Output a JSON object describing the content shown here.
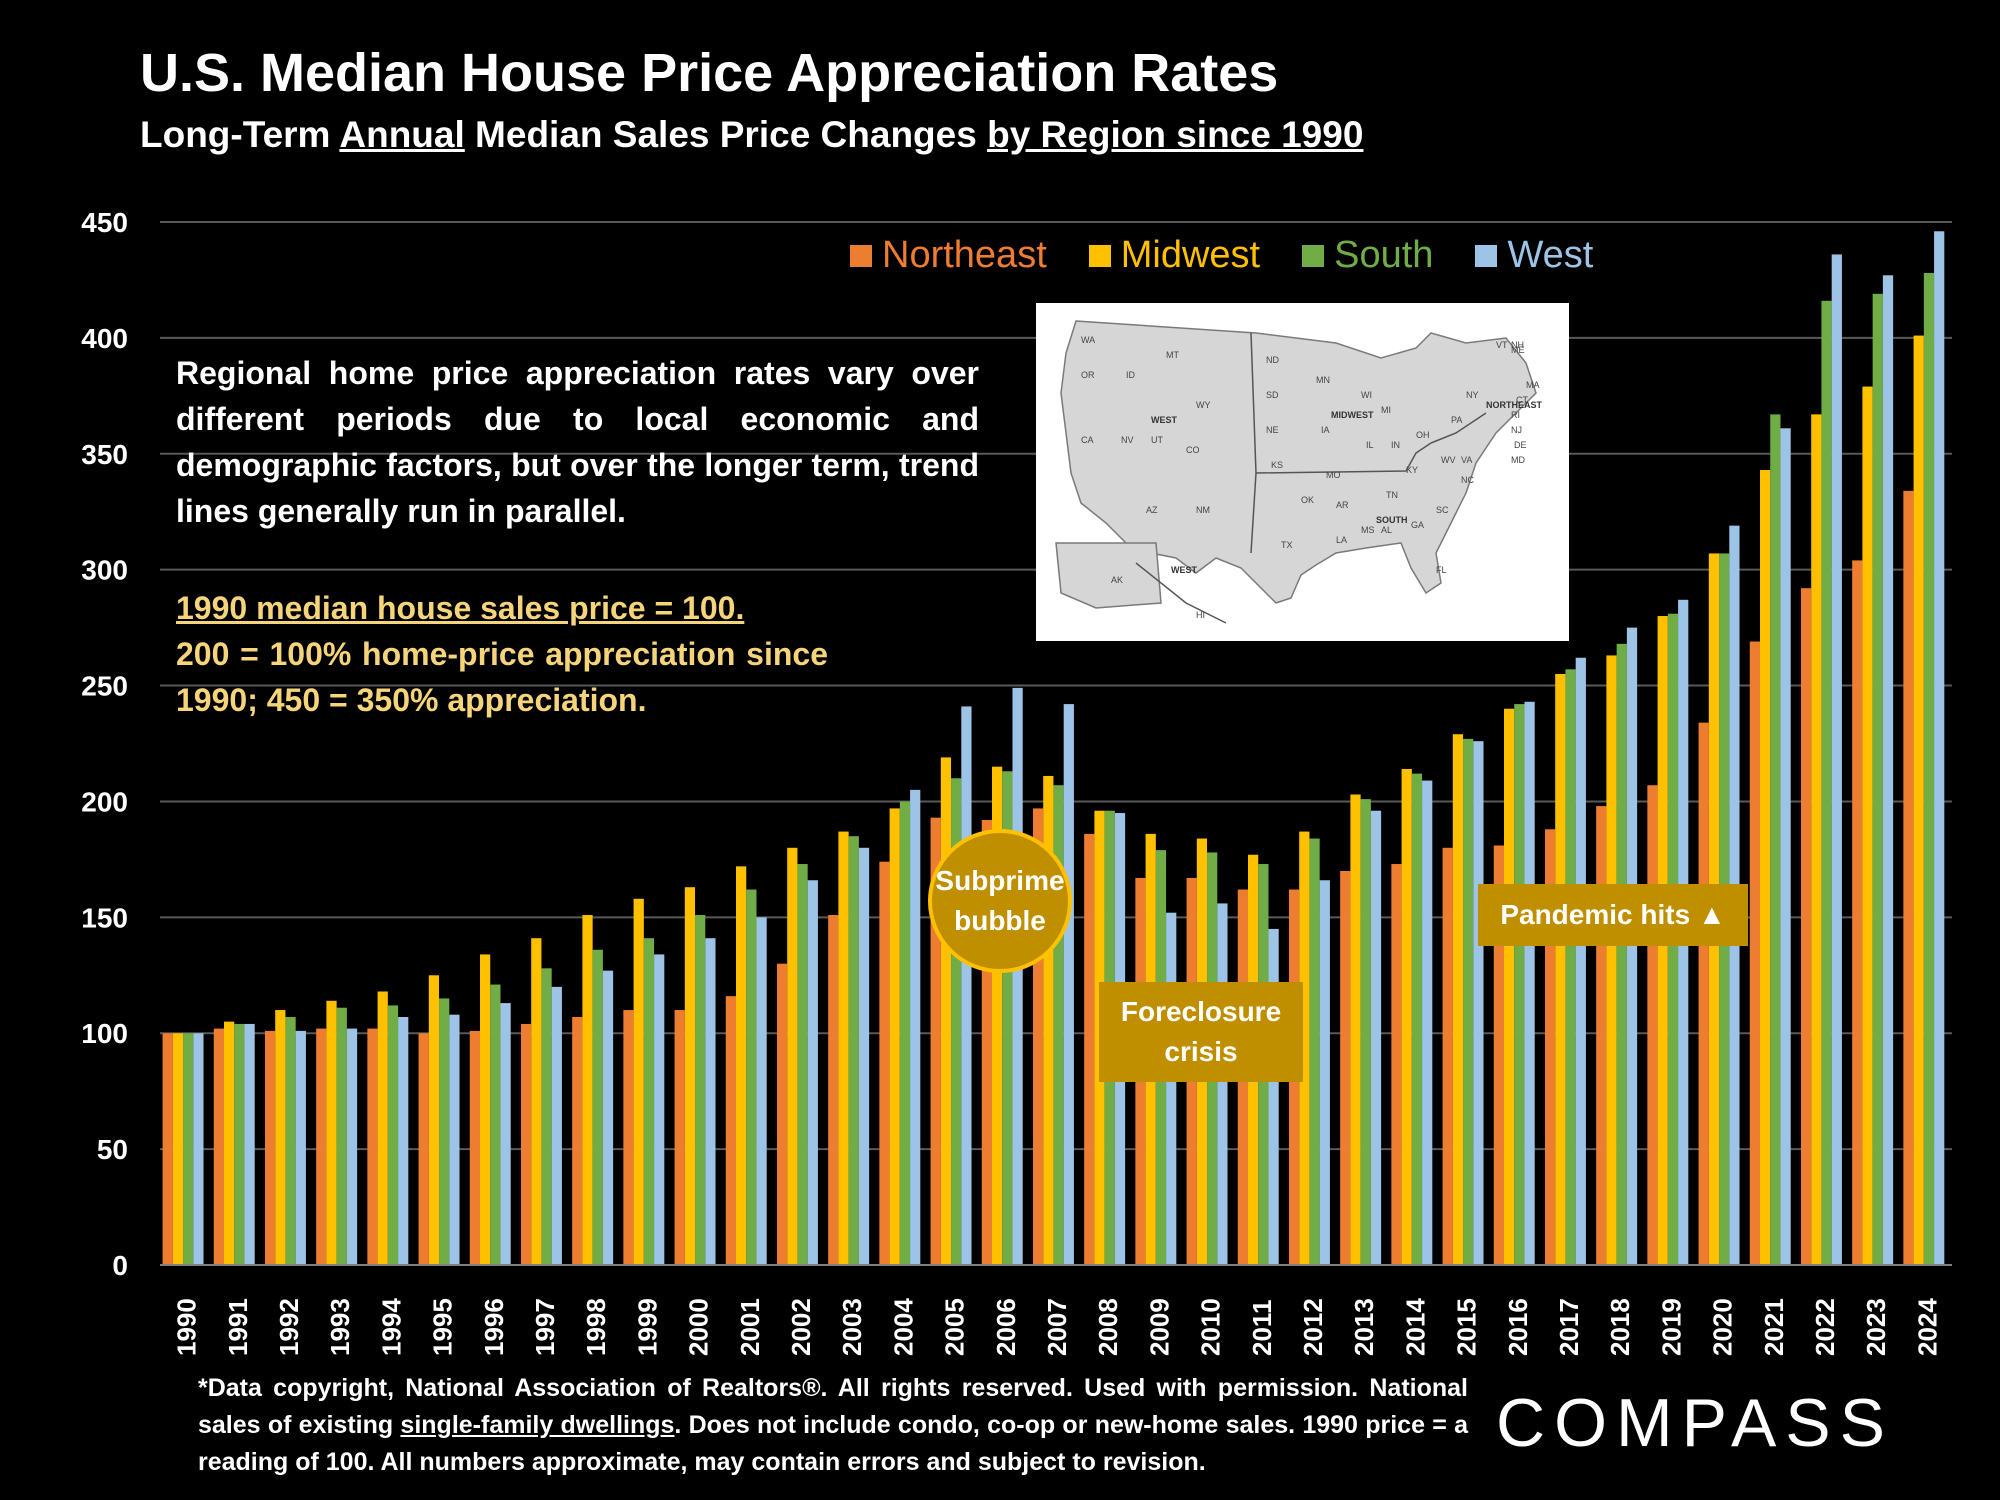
{
  "title": "U.S. Median House Price Appreciation Rates",
  "subtitle": {
    "part1": "Long-Term ",
    "part2": "Annual",
    "part3": " Median Sales Price Changes ",
    "part4": "by Region since 1990"
  },
  "description": "Regional home price appreciation rates vary over different periods due to local economic and demographic factors, but over the longer term, trend lines generally run in parallel.",
  "note": {
    "line1": "1990 median house sales price = 100.",
    "line2": "200 = 100% home-price appreciation since 1990; 450 = 350% appreciation."
  },
  "callouts": {
    "subprime": "Subprime bubble",
    "foreclosure": "Foreclosure crisis",
    "pandemic": "Pandemic hits ▲"
  },
  "map": {
    "region_labels": [
      "WEST",
      "MIDWEST",
      "NORTHEAST",
      "SOUTH",
      "WEST"
    ],
    "state_labels": [
      "WA",
      "OR",
      "ID",
      "MT",
      "WY",
      "CA",
      "NV",
      "UT",
      "CO",
      "AZ",
      "NM",
      "ND",
      "SD",
      "NE",
      "KS",
      "MN",
      "IA",
      "MO",
      "WI",
      "IL",
      "MI",
      "IN",
      "OH",
      "KY",
      "TN",
      "OK",
      "TX",
      "AR",
      "LA",
      "MS",
      "AL",
      "GA",
      "FL",
      "SC",
      "NC",
      "VA",
      "WV",
      "PA",
      "NY",
      "ME",
      "VT",
      "NH",
      "MA",
      "CT",
      "RI",
      "NJ",
      "DE",
      "MD",
      "AK",
      "HI"
    ]
  },
  "footnote": {
    "part1": "*Data copyright, National Association of Realtors®. All rights reserved. Used with permission. National sales of existing ",
    "part2": "single-family dwellings",
    "part3": ". Does not include condo, co-op or new-home sales. 1990 price = a reading of 100. All numbers approximate, may contain errors and subject to revision."
  },
  "logo": "COMPASS",
  "colors": {
    "northeast": "#ed7d31",
    "midwest": "#ffc000",
    "south": "#70ad47",
    "west": "#9dc3e6",
    "callout": "#bf8f00",
    "note": "#f6d57a"
  },
  "chart_data": {
    "type": "bar",
    "title": "U.S. Median House Price Appreciation Rates",
    "categories": [
      "1990",
      "1991",
      "1992",
      "1993",
      "1994",
      "1995",
      "1996",
      "1997",
      "1998",
      "1999",
      "2000",
      "2001",
      "2002",
      "2003",
      "2004",
      "2005",
      "2006",
      "2007",
      "2008",
      "2009",
      "2010",
      "2011",
      "2012",
      "2013",
      "2014",
      "2015",
      "2016",
      "2017",
      "2018",
      "2019",
      "2020",
      "2021",
      "2022",
      "2023",
      "2024"
    ],
    "series": [
      {
        "name": "Northeast",
        "values": [
          100,
          102,
          101,
          102,
          102,
          100,
          101,
          104,
          107,
          110,
          110,
          116,
          130,
          151,
          174,
          193,
          192,
          197,
          186,
          167,
          167,
          162,
          162,
          170,
          173,
          180,
          181,
          188,
          198,
          207,
          234,
          269,
          292,
          304,
          334
        ]
      },
      {
        "name": "Midwest",
        "values": [
          100,
          105,
          110,
          114,
          118,
          125,
          134,
          141,
          151,
          158,
          163,
          172,
          180,
          187,
          197,
          219,
          215,
          211,
          196,
          186,
          184,
          177,
          187,
          203,
          214,
          229,
          240,
          255,
          263,
          280,
          307,
          343,
          367,
          379,
          401
        ]
      },
      {
        "name": "South",
        "values": [
          100,
          104,
          107,
          111,
          112,
          115,
          121,
          128,
          136,
          141,
          151,
          162,
          173,
          185,
          200,
          210,
          213,
          207,
          196,
          179,
          178,
          173,
          184,
          201,
          212,
          227,
          242,
          257,
          268,
          281,
          307,
          367,
          416,
          419,
          428
        ]
      },
      {
        "name": "West",
        "values": [
          100,
          104,
          101,
          102,
          107,
          108,
          113,
          120,
          127,
          134,
          141,
          150,
          166,
          180,
          205,
          241,
          249,
          242,
          195,
          152,
          156,
          145,
          166,
          196,
          209,
          226,
          243,
          262,
          275,
          287,
          319,
          361,
          436,
          427,
          446
        ]
      }
    ],
    "yticks": [
      0,
      50,
      100,
      150,
      200,
      250,
      300,
      350,
      400,
      450
    ],
    "ylim": [
      0,
      450
    ],
    "grid": true,
    "legend": "top-right"
  }
}
